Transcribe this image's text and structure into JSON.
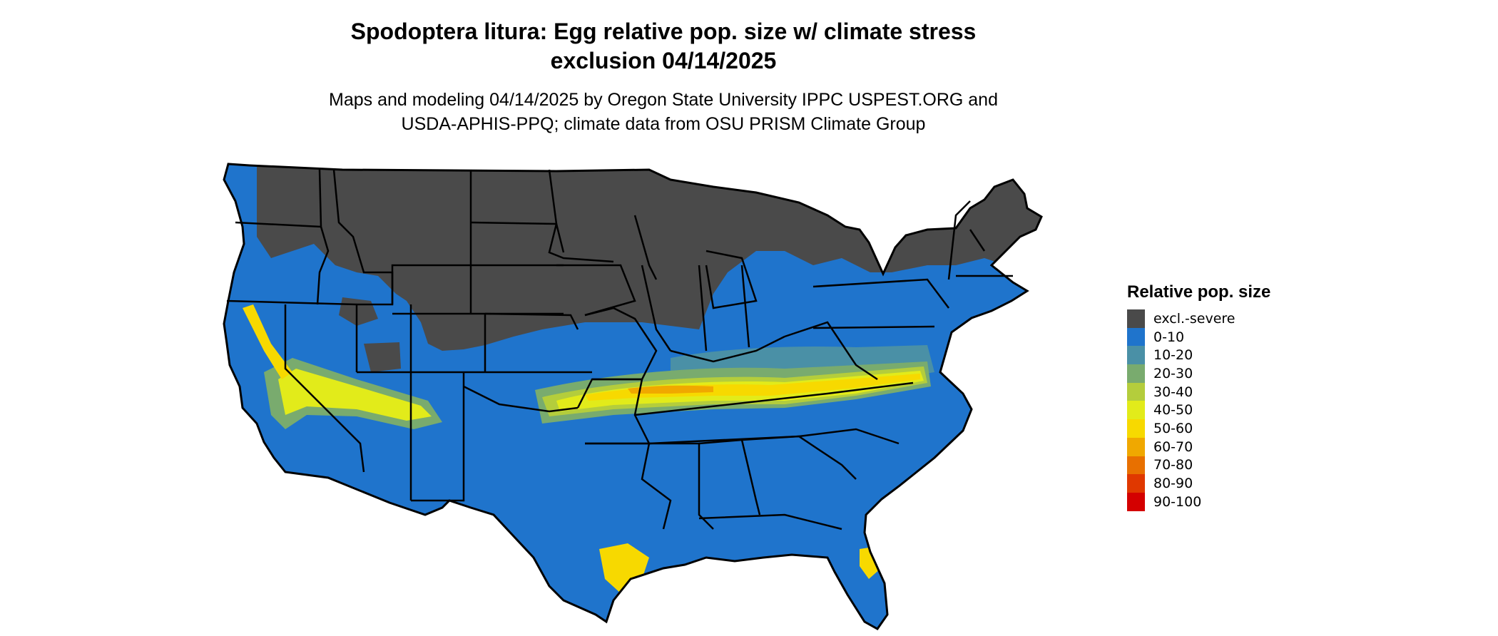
{
  "title": {
    "line1": "Spodoptera litura: Egg relative pop. size w/ climate stress",
    "line2": "exclusion 04/14/2025"
  },
  "subtitle": {
    "line1": "Maps and modeling 04/14/2025 by Oregon State University IPPC USPEST.ORG and",
    "line2": "USDA-APHIS-PPQ; climate data from OSU PRISM Climate Group"
  },
  "legend": {
    "title": "Relative pop. size",
    "items": [
      {
        "label": "excl.-severe",
        "color": "#4a4a4a"
      },
      {
        "label": "0-10",
        "color": "#1f74cc"
      },
      {
        "label": "10-20",
        "color": "#4a90a6"
      },
      {
        "label": "20-30",
        "color": "#79ab6e"
      },
      {
        "label": "30-40",
        "color": "#b4cd3c"
      },
      {
        "label": "40-50",
        "color": "#e2eb1a"
      },
      {
        "label": "50-60",
        "color": "#f7d900"
      },
      {
        "label": "60-70",
        "color": "#f0a800"
      },
      {
        "label": "70-80",
        "color": "#e87000"
      },
      {
        "label": "80-90",
        "color": "#e03800"
      },
      {
        "label": "90-100",
        "color": "#d40000"
      }
    ]
  },
  "map": {
    "region": "contiguous-united-states",
    "band_colors": {
      "excluded": "#4a4a4a",
      "low": "#1f74cc",
      "b10": "#4a90a6",
      "b20": "#79ab6e",
      "b30": "#b4cd3c",
      "b40": "#e2eb1a",
      "b50": "#f7d900",
      "b60": "#f0a800",
      "b70": "#e87000"
    }
  }
}
